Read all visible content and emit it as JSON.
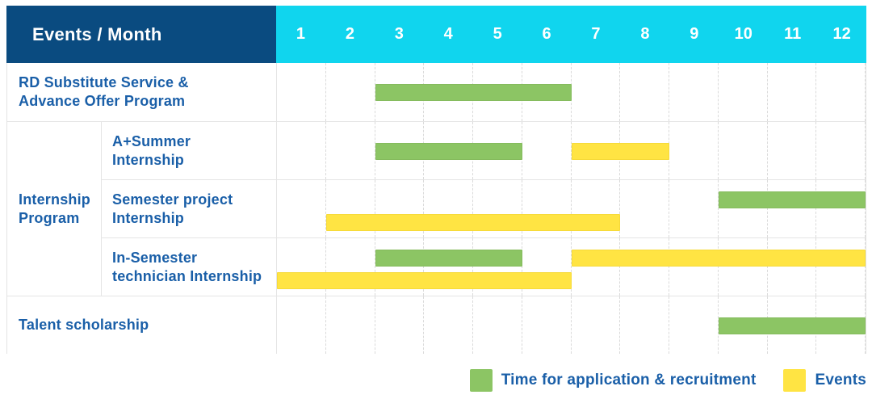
{
  "header": {
    "title": "Events / Month"
  },
  "months": [
    "1",
    "2",
    "3",
    "4",
    "5",
    "6",
    "7",
    "8",
    "9",
    "10",
    "11",
    "12"
  ],
  "colors": {
    "header_bg": "#0a4b80",
    "month_band_bg": "#10d5ee",
    "application_bar": "#8cc564",
    "event_bar": "#ffe443",
    "label_text": "#1a5fa8",
    "grid_line": "#e5e5e5"
  },
  "legend": [
    {
      "series": "application",
      "label": "Time for application & recruitment"
    },
    {
      "series": "event",
      "label": "Events"
    }
  ],
  "chart_data": {
    "type": "bar",
    "subtype": "gantt-timeline",
    "title": "Events / Month",
    "x_axis": {
      "label": "Month",
      "ticks": [
        1,
        2,
        3,
        4,
        5,
        6,
        7,
        8,
        9,
        10,
        11,
        12
      ],
      "range": [
        1,
        12
      ]
    },
    "legend_position": "bottom-right",
    "grid": true,
    "series_colors": {
      "application": "#8cc564",
      "event": "#ffe443"
    },
    "group_label_lines": [
      "Internship",
      "Program"
    ],
    "rows": [
      {
        "group": null,
        "label": "RD Substitute Service & Advance Offer Program",
        "label_lines": [
          "RD Substitute Service &",
          "Advance Offer Program"
        ],
        "bars": [
          {
            "series": "application",
            "start_month": 3,
            "end_month": 6,
            "line": 1
          }
        ]
      },
      {
        "group": "Internship Program",
        "label": "A+Summer Internship",
        "label_lines": [
          "A+Summer",
          "Internship"
        ],
        "bars": [
          {
            "series": "application",
            "start_month": 3,
            "end_month": 5,
            "line": 1
          },
          {
            "series": "event",
            "start_month": 7,
            "end_month": 8,
            "line": 1
          }
        ]
      },
      {
        "group": "Internship Program",
        "label": "Semester project Internship",
        "label_lines": [
          "Semester project",
          "Internship"
        ],
        "bars": [
          {
            "series": "application",
            "start_month": 10,
            "end_month": 12,
            "line": 1
          },
          {
            "series": "event",
            "start_month": 2,
            "end_month": 7,
            "line": 2
          }
        ]
      },
      {
        "group": "Internship Program",
        "label": "In-Semester technician Internship",
        "label_lines": [
          "In-Semester",
          "technician Internship"
        ],
        "bars": [
          {
            "series": "application",
            "start_month": 3,
            "end_month": 5,
            "line": 1
          },
          {
            "series": "event",
            "start_month": 7,
            "end_month": 12,
            "line": 1
          },
          {
            "series": "event",
            "start_month": 1,
            "end_month": 6,
            "line": 2
          }
        ]
      },
      {
        "group": null,
        "label": "Talent scholarship",
        "label_lines": [
          "Talent scholarship"
        ],
        "bars": [
          {
            "series": "application",
            "start_month": 10,
            "end_month": 12,
            "line": 1
          }
        ]
      }
    ]
  }
}
